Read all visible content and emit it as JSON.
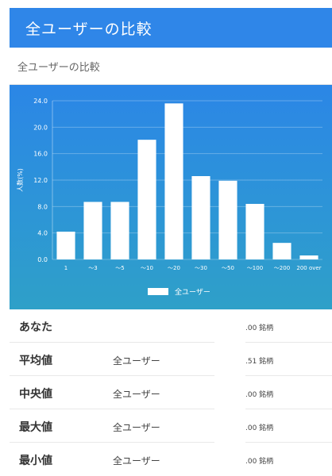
{
  "header": {
    "title": "全ユーザーの比較"
  },
  "subheader": {
    "title": "全ユーザーの比較"
  },
  "chart_data": {
    "type": "bar",
    "categories": [
      "1",
      "～3",
      "～5",
      "～10",
      "～20",
      "～30",
      "～50",
      "～100",
      "～200",
      "200 over"
    ],
    "series": [
      {
        "name": "全ユーザー",
        "values": [
          4.2,
          8.7,
          8.7,
          18.1,
          23.6,
          12.6,
          11.9,
          8.4,
          2.5,
          0.6
        ]
      }
    ],
    "ylabel": "人数(%)",
    "ylim": [
      0,
      24
    ],
    "yticks": [
      "0.0",
      "4.0",
      "8.0",
      "12.0",
      "16.0",
      "20.0",
      "24.0"
    ],
    "grid": true,
    "legend_position": "bottom-center",
    "colors": {
      "bar": "#ffffff",
      "panel_top": "#2b86e6",
      "panel_bottom": "#2ea0c8"
    }
  },
  "stats": [
    {
      "label": "あなた",
      "who": "",
      "value": ".00 銘柄"
    },
    {
      "label": "平均値",
      "who": "全ユーザー",
      "value": ".51 銘柄"
    },
    {
      "label": "中央値",
      "who": "全ユーザー",
      "value": ".00 銘柄"
    },
    {
      "label": "最大値",
      "who": "全ユーザー",
      "value": ".00 銘柄"
    },
    {
      "label": "最小値",
      "who": "全ユーザー",
      "value": ".00 銘柄"
    }
  ]
}
